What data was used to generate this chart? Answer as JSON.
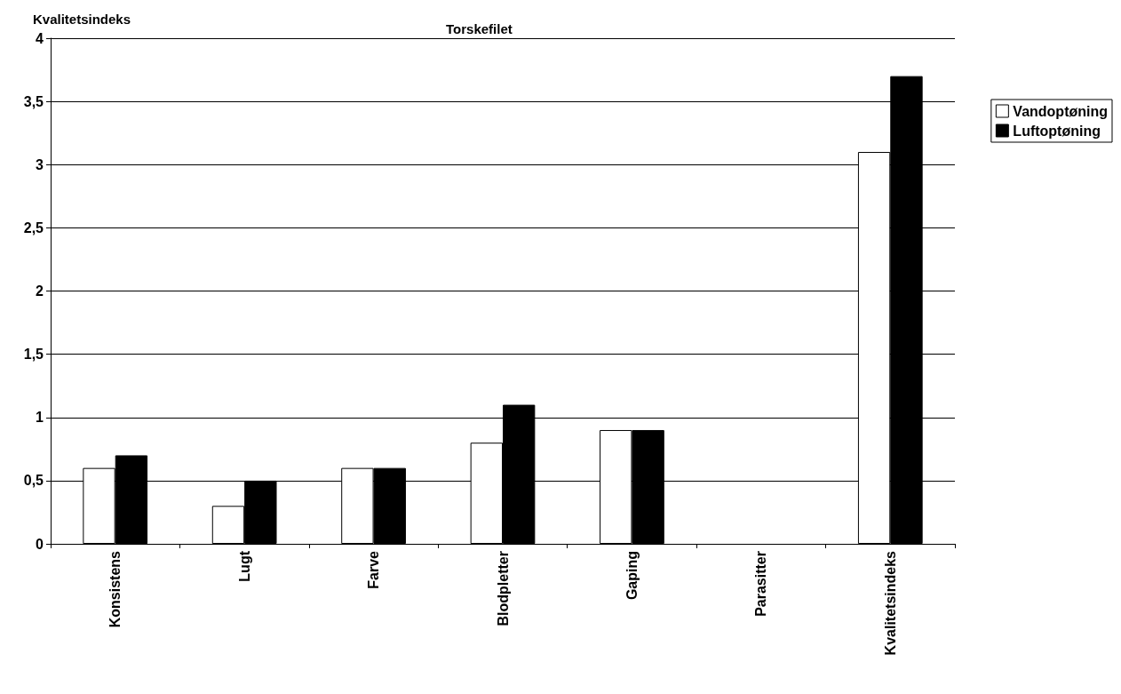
{
  "chart_data": {
    "type": "bar",
    "title": "Torskefilet",
    "ylabel": "Kvalitetsindeks",
    "categories": [
      "Konsistens",
      "Lugt",
      "Farve",
      "Blodpletter",
      "Gaping",
      "Parasitter",
      "Kvalitetsindeks"
    ],
    "series": [
      {
        "name": "Vandoptøning",
        "color": "#ffffff",
        "values": [
          0.6,
          0.3,
          0.6,
          0.8,
          0.9,
          0,
          3.1
        ]
      },
      {
        "name": "Luftoptøning",
        "color": "#000000",
        "values": [
          0.7,
          0.5,
          0.6,
          1.1,
          0.9,
          0,
          3.7
        ]
      }
    ],
    "ylim": [
      0,
      4
    ],
    "yticks": [
      0,
      {
        "value": 0.5,
        "label": "0,5"
      },
      1,
      {
        "value": 1.5,
        "label": "1,5"
      },
      2,
      {
        "value": 2.5,
        "label": "2,5"
      },
      3,
      {
        "value": 3.5,
        "label": "3,5"
      },
      4
    ],
    "grid": "y",
    "legend": "right"
  }
}
